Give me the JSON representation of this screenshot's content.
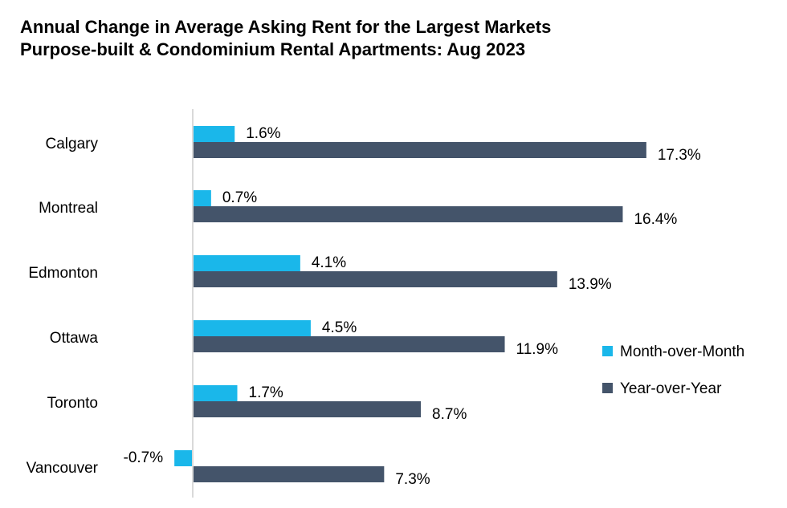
{
  "title_lines": [
    "Annual Change in Average Asking Rent for the Largest Markets",
    "Purpose-built & Condominium Rental Apartments: Aug 2023"
  ],
  "colors": {
    "month_over_month": "#1ab7ea",
    "year_over_year": "#44546a",
    "axis": "#d9d9d9"
  },
  "chart_data": {
    "type": "bar",
    "orientation": "horizontal",
    "title": "Annual Change in Average Asking Rent for the Largest Markets Purpose-built & Condominium Rental Apartments: Aug 2023",
    "categories": [
      "Calgary",
      "Montreal",
      "Edmonton",
      "Ottawa",
      "Toronto",
      "Vancouver"
    ],
    "series": [
      {
        "name": "Month-over-Month",
        "values": [
          1.6,
          0.7,
          4.1,
          4.5,
          1.7,
          -0.7
        ],
        "labels": [
          "1.6%",
          "0.7%",
          "4.1%",
          "4.5%",
          "1.7%",
          "-0.7%"
        ]
      },
      {
        "name": "Year-over-Year",
        "values": [
          17.3,
          16.4,
          13.9,
          11.9,
          8.7,
          7.3
        ],
        "labels": [
          "17.3%",
          "16.4%",
          "13.9%",
          "11.9%",
          "8.7%",
          "7.3%"
        ]
      }
    ],
    "xlabel": "",
    "ylabel": "",
    "grid": false,
    "legend_position": "right"
  }
}
